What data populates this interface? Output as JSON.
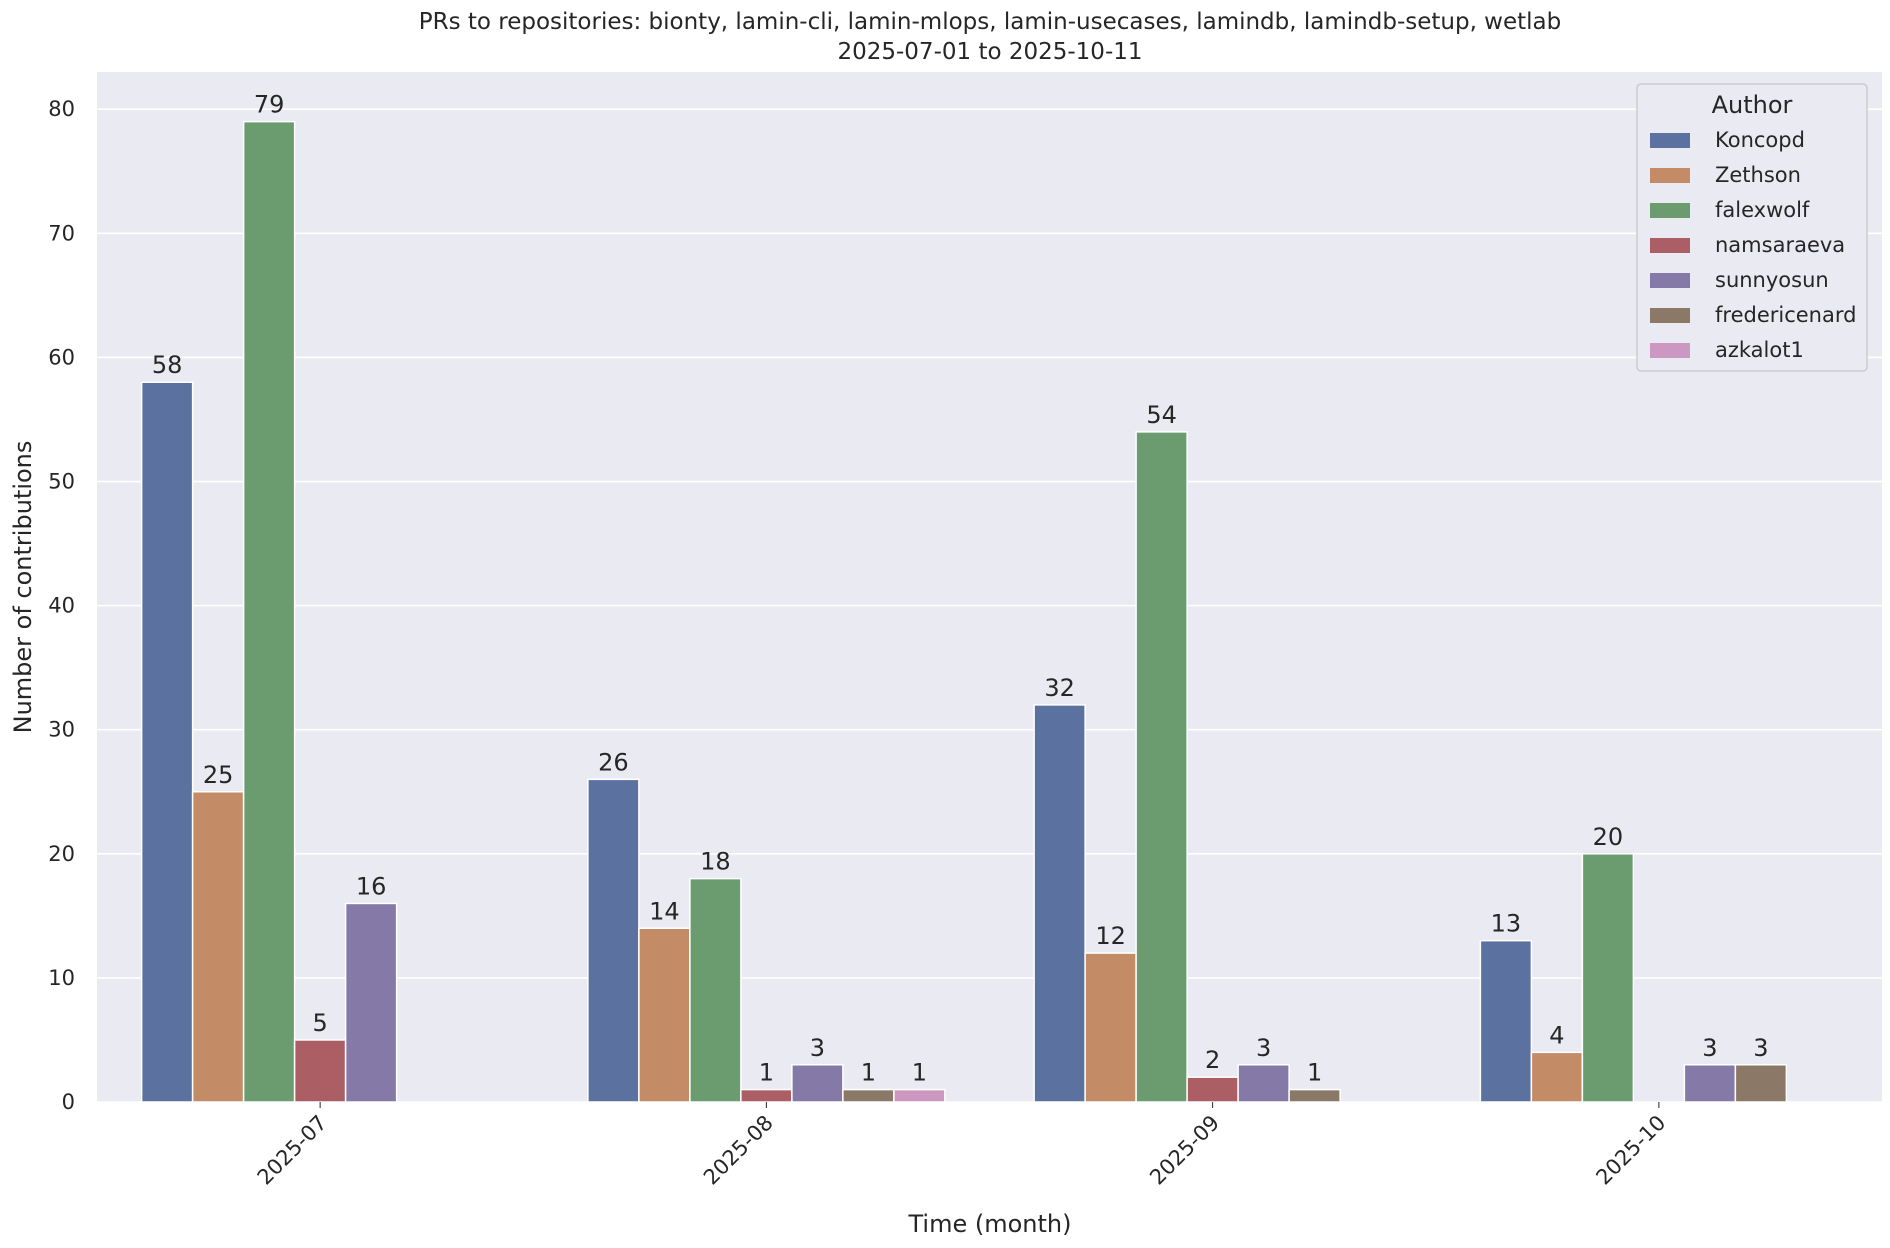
{
  "chart_data": {
    "type": "bar",
    "title": "PRs to repositories: bionty, lamin-cli, lamin-mlops, lamin-usecases, lamindb, lamindb-setup, wetlab",
    "subtitle": "2025-07-01 to 2025-10-11",
    "xlabel": "Time (month)",
    "ylabel": "Number of contributions",
    "ylim": [
      0,
      83
    ],
    "yticks": [
      0,
      10,
      20,
      30,
      40,
      50,
      60,
      70,
      80
    ],
    "grid": true,
    "legend": {
      "title": "Author",
      "placement": "top-right"
    },
    "categories": [
      "2025-07",
      "2025-08",
      "2025-09",
      "2025-10"
    ],
    "series": [
      {
        "name": "Koncopd",
        "color": "#5b72a1",
        "values": [
          58,
          26,
          32,
          13
        ]
      },
      {
        "name": "Zethson",
        "color": "#c48b67",
        "values": [
          25,
          14,
          12,
          4
        ]
      },
      {
        "name": "falexwolf",
        "color": "#6b9c6f",
        "values": [
          79,
          18,
          54,
          20
        ]
      },
      {
        "name": "namsaraeva",
        "color": "#ab5f64",
        "values": [
          5,
          1,
          2,
          null
        ]
      },
      {
        "name": "sunnyosun",
        "color": "#8579a7",
        "values": [
          16,
          3,
          3,
          3
        ]
      },
      {
        "name": "fredericenard",
        "color": "#8b7866",
        "values": [
          null,
          1,
          1,
          3
        ]
      },
      {
        "name": "azkalot1",
        "color": "#cc97c0",
        "values": [
          null,
          1,
          null,
          null
        ]
      }
    ]
  }
}
